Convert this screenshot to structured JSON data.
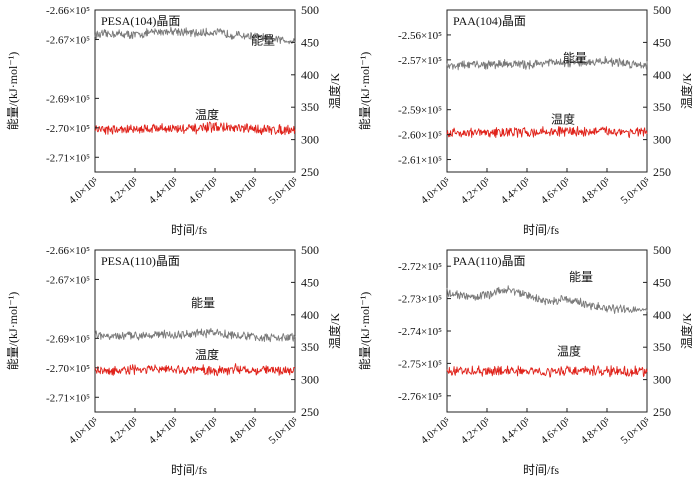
{
  "figure": {
    "xlabel": "时间/fs",
    "ylabel_left": "能量/(kJ·mol⁻¹)",
    "ylabel_right": "温度/K",
    "x_ticks": [
      "4.0×10⁵",
      "4.2×10⁵",
      "4.4×10⁵",
      "4.6×10⁵",
      "4.8×10⁵",
      "5.0×10⁵"
    ]
  },
  "chart_data": [
    {
      "type": "line",
      "title": "PESA(104)晶面",
      "xlabel": "时间/fs",
      "ylabel": "能量/(kJ·mol⁻¹)",
      "ylabel_right": "温度/K",
      "xlim": [
        400000,
        500000
      ],
      "ylim_left": [
        -271500,
        -266000
      ],
      "ylim_right": [
        250,
        500
      ],
      "x_ticks": [
        400000,
        420000,
        440000,
        460000,
        480000,
        500000
      ],
      "y_ticks_left": [
        "-2.66×10⁵",
        "-2.67×10⁵",
        "-2.69×10⁵",
        "-2.70×10⁵",
        "-2.71×10⁵"
      ],
      "y_ticks_left_values": [
        -266000,
        -267000,
        -269000,
        -270000,
        -271000
      ],
      "y_ticks_right": [
        250,
        300,
        350,
        400,
        450,
        500
      ],
      "series": [
        {
          "name": "能量",
          "axis": "left",
          "color": "#7a7a7a",
          "x": [
            400000,
            410000,
            420000,
            430000,
            440000,
            450000,
            460000,
            470000,
            480000,
            490000,
            500000
          ],
          "values": [
            -266850,
            -266800,
            -266850,
            -266750,
            -266700,
            -266800,
            -266750,
            -266850,
            -266900,
            -267000,
            -267050
          ]
        },
        {
          "name": "温度",
          "axis": "right",
          "color": "#e0231b",
          "x": [
            400000,
            410000,
            420000,
            430000,
            440000,
            450000,
            460000,
            470000,
            480000,
            490000,
            500000
          ],
          "values": [
            317,
            315,
            316,
            318,
            317,
            316,
            320,
            317,
            316,
            315,
            316
          ]
        }
      ],
      "annotations": [
        {
          "text": "能量",
          "x": 484000,
          "y": 447,
          "axis": "right"
        },
        {
          "text": "温度",
          "x": 456000,
          "y": 332,
          "axis": "right"
        }
      ]
    },
    {
      "type": "line",
      "title": "PAA(104)晶面",
      "xlabel": "时间/fs",
      "ylabel": "能量/(kJ·mol⁻¹)",
      "ylabel_right": "温度/K",
      "xlim": [
        400000,
        500000
      ],
      "ylim_left": [
        -261500,
        -255000
      ],
      "ylim_right": [
        250,
        500
      ],
      "x_ticks": [
        400000,
        420000,
        440000,
        460000,
        480000,
        500000
      ],
      "y_ticks_left": [
        "-2.56×10⁵",
        "-2.57×10⁵",
        "-2.59×10⁵",
        "-2.60×10⁵",
        "-2.61×10⁵"
      ],
      "y_ticks_left_values": [
        -256000,
        -257000,
        -259000,
        -260000,
        -261000
      ],
      "y_ticks_right": [
        250,
        300,
        350,
        400,
        450,
        500
      ],
      "series": [
        {
          "name": "能量",
          "axis": "left",
          "color": "#7a7a7a",
          "x": [
            400000,
            410000,
            420000,
            430000,
            440000,
            450000,
            460000,
            470000,
            480000,
            490000,
            500000
          ],
          "values": [
            -257250,
            -257200,
            -257200,
            -257150,
            -257200,
            -257100,
            -257150,
            -257100,
            -257050,
            -257150,
            -257200
          ]
        },
        {
          "name": "温度",
          "axis": "right",
          "color": "#e0231b",
          "x": [
            400000,
            410000,
            420000,
            430000,
            440000,
            450000,
            460000,
            470000,
            480000,
            490000,
            500000
          ],
          "values": [
            310,
            311,
            310,
            312,
            311,
            312,
            313,
            312,
            313,
            312,
            311
          ]
        }
      ],
      "annotations": [
        {
          "text": "能量",
          "x": 464000,
          "y": 420,
          "axis": "right"
        },
        {
          "text": "温度",
          "x": 458000,
          "y": 325,
          "axis": "right"
        }
      ]
    },
    {
      "type": "line",
      "title": "PESA(110)晶面",
      "xlabel": "时间/fs",
      "ylabel": "能量/(kJ·mol⁻¹)",
      "ylabel_right": "温度/K",
      "xlim": [
        400000,
        500000
      ],
      "ylim_left": [
        -271500,
        -266000
      ],
      "ylim_right": [
        250,
        500
      ],
      "x_ticks": [
        400000,
        420000,
        440000,
        460000,
        480000,
        500000
      ],
      "y_ticks_left": [
        "-2.66×10⁵",
        "-2.67×10⁵",
        "-2.69×10⁵",
        "-2.70×10⁵",
        "-2.71×10⁵"
      ],
      "y_ticks_left_values": [
        -266000,
        -267000,
        -269000,
        -270000,
        -271000
      ],
      "y_ticks_right": [
        250,
        300,
        350,
        400,
        450,
        500
      ],
      "series": [
        {
          "name": "能量",
          "axis": "left",
          "color": "#7a7a7a",
          "x": [
            400000,
            410000,
            420000,
            430000,
            440000,
            450000,
            460000,
            470000,
            480000,
            490000,
            500000
          ],
          "values": [
            -268900,
            -268950,
            -268900,
            -268850,
            -268900,
            -268850,
            -268800,
            -268900,
            -268950,
            -269000,
            -268950
          ]
        },
        {
          "name": "温度",
          "axis": "right",
          "color": "#e0231b",
          "x": [
            400000,
            410000,
            420000,
            430000,
            440000,
            450000,
            460000,
            470000,
            480000,
            490000,
            500000
          ],
          "values": [
            314,
            313,
            315,
            316,
            314,
            315,
            314,
            316,
            315,
            314,
            315
          ]
        }
      ],
      "annotations": [
        {
          "text": "能量",
          "x": 454000,
          "y": 412,
          "axis": "right"
        },
        {
          "text": "温度",
          "x": 456000,
          "y": 332,
          "axis": "right"
        }
      ]
    },
    {
      "type": "line",
      "title": "PAA(110)晶面",
      "xlabel": "时间/fs",
      "ylabel": "能量/(kJ·mol⁻¹)",
      "ylabel_right": "温度/K",
      "xlim": [
        400000,
        500000
      ],
      "ylim_left": [
        -276500,
        -271500
      ],
      "ylim_right": [
        250,
        500
      ],
      "x_ticks": [
        400000,
        420000,
        440000,
        460000,
        480000,
        500000
      ],
      "y_ticks_left": [
        "-2.72×10⁵",
        "-2.73×10⁵",
        "-2.74×10⁵",
        "-2.75×10⁵",
        "-2.76×10⁵"
      ],
      "y_ticks_left_values": [
        -272000,
        -273000,
        -274000,
        -275000,
        -276000
      ],
      "y_ticks_right": [
        250,
        300,
        350,
        400,
        450,
        500
      ],
      "series": [
        {
          "name": "能量",
          "axis": "left",
          "color": "#7a7a7a",
          "x": [
            400000,
            410000,
            420000,
            430000,
            440000,
            450000,
            460000,
            470000,
            480000,
            490000,
            500000
          ],
          "values": [
            -272800,
            -272950,
            -272900,
            -272700,
            -272900,
            -273100,
            -273000,
            -273200,
            -273300,
            -273350,
            -273300
          ]
        },
        {
          "name": "温度",
          "axis": "right",
          "color": "#e0231b",
          "x": [
            400000,
            410000,
            420000,
            430000,
            440000,
            450000,
            460000,
            470000,
            480000,
            490000,
            500000
          ],
          "values": [
            312,
            313,
            312,
            314,
            313,
            312,
            314,
            313,
            313,
            312,
            313
          ]
        }
      ],
      "annotations": [
        {
          "text": "能量",
          "x": 467000,
          "y": 452,
          "axis": "right"
        },
        {
          "text": "温度",
          "x": 461000,
          "y": 337,
          "axis": "right"
        }
      ]
    }
  ]
}
